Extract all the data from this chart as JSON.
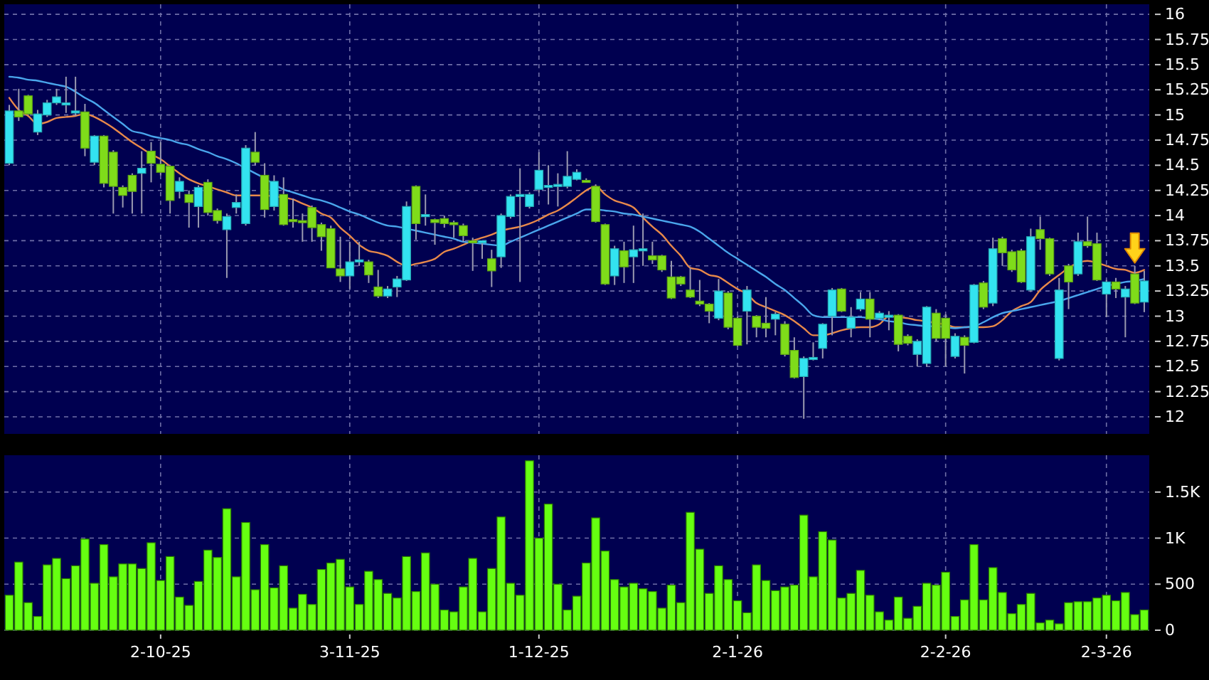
{
  "chart_data": [
    {
      "type": "candlestick",
      "categories": [
        null,
        null,
        null,
        null,
        null,
        null,
        null,
        null,
        null,
        null,
        null,
        null,
        null,
        null,
        null,
        null,
        null,
        null,
        null,
        null,
        null,
        null,
        null,
        null,
        null,
        null,
        null,
        null,
        null,
        null,
        null,
        null,
        null,
        null,
        null,
        null,
        null,
        null,
        null,
        null,
        null,
        null,
        null,
        null,
        null,
        null,
        null,
        null,
        null,
        null,
        null,
        null,
        null,
        null,
        null,
        null,
        null,
        null,
        null,
        null,
        null,
        null,
        null,
        null,
        null,
        null,
        null,
        null,
        null,
        null,
        null,
        null,
        null,
        null,
        null,
        null,
        null,
        null,
        null,
        null,
        null,
        null,
        null,
        null,
        null,
        null,
        null,
        null,
        null,
        null,
        null,
        null,
        null,
        null,
        null,
        null,
        null,
        null,
        null,
        null,
        null,
        null,
        null,
        null,
        null,
        null,
        null,
        null,
        null,
        null,
        null,
        null,
        null,
        null,
        null,
        null,
        null,
        null,
        null,
        null,
        null
      ],
      "ohlc": [
        [
          14.52,
          15.1,
          14.5,
          15.04
        ],
        [
          15.04,
          15.26,
          14.94,
          14.98
        ],
        [
          15.19,
          15.2,
          15.0,
          15.01
        ],
        [
          14.83,
          15.05,
          14.8,
          15.01
        ],
        [
          15.0,
          15.15,
          14.98,
          15.12
        ],
        [
          15.12,
          15.26,
          15.1,
          15.18
        ],
        [
          15.11,
          15.38,
          15.02,
          15.12
        ],
        [
          15.03,
          15.38,
          14.99,
          15.04
        ],
        [
          15.03,
          15.11,
          14.59,
          14.67
        ],
        [
          14.53,
          14.8,
          14.5,
          14.79
        ],
        [
          14.79,
          14.8,
          14.28,
          14.32
        ],
        [
          14.63,
          14.65,
          14.02,
          14.29
        ],
        [
          14.28,
          14.3,
          14.08,
          14.2
        ],
        [
          14.4,
          14.42,
          14.02,
          14.24
        ],
        [
          14.42,
          14.64,
          14.02,
          14.47
        ],
        [
          14.64,
          14.73,
          14.33,
          14.52
        ],
        [
          14.51,
          14.73,
          14.4,
          14.43
        ],
        [
          14.49,
          14.5,
          14.02,
          14.15
        ],
        [
          14.24,
          14.38,
          14.17,
          14.34
        ],
        [
          14.21,
          14.25,
          13.88,
          14.13
        ],
        [
          14.09,
          14.3,
          13.88,
          14.28
        ],
        [
          14.33,
          14.36,
          14.0,
          14.03
        ],
        [
          14.05,
          14.07,
          13.92,
          13.95
        ],
        [
          13.86,
          14.02,
          13.38,
          13.99
        ],
        [
          14.08,
          14.21,
          14.02,
          14.13
        ],
        [
          13.92,
          14.7,
          13.9,
          14.67
        ],
        [
          14.63,
          14.83,
          14.5,
          14.53
        ],
        [
          14.4,
          14.52,
          13.98,
          14.06
        ],
        [
          14.09,
          14.4,
          14.05,
          14.34
        ],
        [
          14.21,
          14.38,
          13.9,
          13.91
        ],
        [
          13.96,
          14.17,
          13.88,
          13.94
        ],
        [
          13.95,
          14.02,
          13.74,
          13.94
        ],
        [
          14.08,
          14.1,
          13.74,
          13.88
        ],
        [
          13.91,
          13.93,
          13.65,
          13.79
        ],
        [
          13.87,
          13.9,
          13.48,
          13.48
        ],
        [
          13.47,
          13.79,
          13.34,
          13.4
        ],
        [
          13.4,
          13.74,
          13.27,
          13.54
        ],
        [
          13.55,
          13.74,
          13.5,
          13.56
        ],
        [
          13.54,
          13.56,
          13.33,
          13.41
        ],
        [
          13.29,
          13.46,
          13.18,
          13.2
        ],
        [
          13.2,
          13.3,
          13.18,
          13.27
        ],
        [
          13.29,
          13.4,
          13.19,
          13.37
        ],
        [
          13.36,
          14.14,
          13.35,
          14.09
        ],
        [
          14.29,
          14.3,
          13.76,
          13.92
        ],
        [
          14.0,
          14.21,
          13.9,
          14.01
        ],
        [
          13.96,
          13.97,
          13.71,
          13.93
        ],
        [
          13.97,
          14.0,
          13.88,
          13.92
        ],
        [
          13.93,
          13.95,
          13.78,
          13.92
        ],
        [
          13.9,
          13.92,
          13.74,
          13.8
        ],
        [
          13.75,
          13.78,
          13.45,
          13.74
        ],
        [
          13.74,
          13.75,
          13.57,
          13.75
        ],
        [
          13.57,
          13.66,
          13.29,
          13.45
        ],
        [
          13.59,
          14.02,
          13.48,
          14.0
        ],
        [
          13.99,
          14.21,
          13.97,
          14.19
        ],
        [
          14.2,
          14.47,
          13.34,
          14.21
        ],
        [
          14.09,
          14.23,
          14.07,
          14.21
        ],
        [
          14.26,
          14.63,
          14.23,
          14.45
        ],
        [
          14.29,
          14.5,
          14.11,
          14.3
        ],
        [
          14.29,
          14.42,
          14.09,
          14.31
        ],
        [
          14.29,
          14.64,
          14.27,
          14.39
        ],
        [
          14.36,
          14.46,
          14.35,
          14.43
        ],
        [
          14.35,
          14.37,
          14.33,
          14.34
        ],
        [
          14.29,
          14.31,
          13.93,
          13.94
        ],
        [
          13.91,
          13.92,
          13.31,
          13.32
        ],
        [
          13.4,
          13.7,
          13.31,
          13.67
        ],
        [
          13.65,
          13.74,
          13.33,
          13.49
        ],
        [
          13.59,
          13.9,
          13.33,
          13.66
        ],
        [
          13.66,
          14.02,
          13.5,
          13.67
        ],
        [
          13.6,
          13.74,
          13.52,
          13.56
        ],
        [
          13.6,
          13.61,
          13.44,
          13.46
        ],
        [
          13.39,
          13.55,
          13.17,
          13.18
        ],
        [
          13.39,
          13.4,
          13.3,
          13.32
        ],
        [
          13.26,
          13.48,
          13.18,
          13.19
        ],
        [
          13.15,
          13.36,
          13.1,
          13.12
        ],
        [
          13.12,
          13.13,
          12.93,
          13.05
        ],
        [
          12.98,
          13.37,
          12.96,
          13.25
        ],
        [
          13.23,
          13.25,
          12.87,
          12.89
        ],
        [
          12.98,
          13.0,
          12.7,
          12.71
        ],
        [
          13.05,
          13.3,
          12.72,
          13.26
        ],
        [
          13.0,
          13.01,
          12.79,
          12.89
        ],
        [
          12.93,
          13.19,
          12.79,
          12.88
        ],
        [
          12.97,
          13.04,
          12.81,
          13.02
        ],
        [
          12.92,
          12.95,
          12.6,
          12.62
        ],
        [
          12.66,
          12.79,
          12.38,
          12.39
        ],
        [
          12.4,
          12.6,
          11.98,
          12.58
        ],
        [
          12.58,
          12.74,
          12.56,
          12.59
        ],
        [
          12.68,
          12.93,
          12.58,
          12.92
        ],
        [
          13.0,
          13.28,
          12.81,
          13.26
        ],
        [
          13.27,
          13.28,
          13.04,
          13.05
        ],
        [
          12.88,
          13.09,
          12.79,
          12.99
        ],
        [
          13.07,
          13.24,
          13.05,
          13.17
        ],
        [
          13.17,
          13.24,
          12.79,
          12.97
        ],
        [
          12.98,
          13.05,
          12.96,
          13.03
        ],
        [
          13.0,
          13.05,
          12.86,
          13.01
        ],
        [
          13.01,
          13.02,
          12.65,
          12.72
        ],
        [
          12.8,
          12.82,
          12.71,
          12.73
        ],
        [
          12.62,
          12.77,
          12.5,
          12.75
        ],
        [
          12.53,
          13.1,
          12.5,
          13.09
        ],
        [
          13.03,
          13.07,
          12.75,
          12.78
        ],
        [
          12.98,
          13.02,
          12.5,
          12.78
        ],
        [
          12.6,
          12.83,
          12.58,
          12.8
        ],
        [
          12.79,
          12.81,
          12.43,
          12.71
        ],
        [
          12.74,
          13.32,
          12.73,
          13.31
        ],
        [
          13.33,
          13.35,
          13.07,
          13.09
        ],
        [
          13.13,
          13.78,
          13.1,
          13.67
        ],
        [
          13.77,
          13.79,
          13.5,
          13.63
        ],
        [
          13.64,
          13.66,
          13.44,
          13.46
        ],
        [
          13.65,
          13.67,
          13.33,
          13.34
        ],
        [
          13.26,
          13.87,
          13.24,
          13.79
        ],
        [
          13.86,
          13.99,
          13.66,
          13.77
        ],
        [
          13.77,
          13.78,
          13.4,
          13.42
        ],
        [
          12.58,
          13.38,
          12.56,
          13.26
        ],
        [
          13.5,
          13.52,
          13.07,
          13.34
        ],
        [
          13.42,
          13.83,
          13.4,
          13.74
        ],
        [
          13.74,
          13.99,
          13.68,
          13.7
        ],
        [
          13.72,
          13.83,
          13.35,
          13.36
        ],
        [
          13.22,
          13.36,
          12.99,
          13.34
        ],
        [
          13.34,
          13.38,
          13.18,
          13.27
        ],
        [
          13.19,
          13.3,
          12.79,
          13.27
        ],
        [
          13.42,
          13.5,
          13.12,
          13.13
        ],
        [
          13.14,
          13.45,
          13.04,
          13.35
        ]
      ],
      "colors": [
        "#33e3f0",
        "#7fdc1a",
        "#7fdc1a",
        "#33e3f0",
        "#33e3f0",
        "#33e3f0",
        "#33e3f0",
        "#33e3f0",
        "#7fdc1a",
        "#33e3f0",
        "#7fdc1a",
        "#7fdc1a",
        "#7fdc1a",
        "#7fdc1a",
        "#33e3f0",
        "#7fdc1a",
        "#7fdc1a",
        "#7fdc1a",
        "#33e3f0",
        "#7fdc1a",
        "#33e3f0",
        "#7fdc1a",
        "#7fdc1a",
        "#33e3f0",
        "#33e3f0",
        "#33e3f0",
        "#7fdc1a",
        "#7fdc1a",
        "#33e3f0",
        "#7fdc1a",
        "#7fdc1a",
        "#7fdc1a",
        "#7fdc1a",
        "#7fdc1a",
        "#7fdc1a",
        "#7fdc1a",
        "#33e3f0",
        "#33e3f0",
        "#7fdc1a",
        "#7fdc1a",
        "#33e3f0",
        "#33e3f0",
        "#33e3f0",
        "#7fdc1a",
        "#33e3f0",
        "#7fdc1a",
        "#7fdc1a",
        "#7fdc1a",
        "#7fdc1a",
        "#7fdc1a",
        "#33e3f0",
        "#7fdc1a",
        "#33e3f0",
        "#33e3f0",
        "#33e3f0",
        "#33e3f0",
        "#33e3f0",
        "#33e3f0",
        "#33e3f0",
        "#33e3f0",
        "#33e3f0",
        "#7fdc1a",
        "#7fdc1a",
        "#7fdc1a",
        "#33e3f0",
        "#7fdc1a",
        "#33e3f0",
        "#33e3f0",
        "#7fdc1a",
        "#7fdc1a",
        "#7fdc1a",
        "#7fdc1a",
        "#7fdc1a",
        "#7fdc1a",
        "#7fdc1a",
        "#33e3f0",
        "#7fdc1a",
        "#7fdc1a",
        "#33e3f0",
        "#7fdc1a",
        "#7fdc1a",
        "#33e3f0",
        "#7fdc1a",
        "#7fdc1a",
        "#33e3f0",
        "#33e3f0",
        "#33e3f0",
        "#33e3f0",
        "#7fdc1a",
        "#33e3f0",
        "#33e3f0",
        "#7fdc1a",
        "#33e3f0",
        "#33e3f0",
        "#7fdc1a",
        "#7fdc1a",
        "#33e3f0",
        "#33e3f0",
        "#7fdc1a",
        "#7fdc1a",
        "#33e3f0",
        "#7fdc1a",
        "#33e3f0",
        "#7fdc1a",
        "#33e3f0",
        "#7fdc1a",
        "#7fdc1a",
        "#7fdc1a",
        "#33e3f0",
        "#7fdc1a",
        "#7fdc1a",
        "#33e3f0",
        "#7fdc1a",
        "#33e3f0",
        "#7fdc1a",
        "#7fdc1a",
        "#33e3f0",
        "#7fdc1a",
        "#33e3f0",
        "#7fdc1a",
        "#33e3f0"
      ],
      "series": [
        {
          "type": "line",
          "color": "#e8894a",
          "values": [
            15.17,
            15.05,
            14.99,
            14.91,
            14.93,
            14.97,
            14.98,
            14.99,
            15.01,
            14.98,
            14.93,
            14.87,
            14.8,
            14.73,
            14.67,
            14.61,
            14.56,
            14.49,
            14.42,
            14.36,
            14.32,
            14.29,
            14.26,
            14.23,
            14.2,
            14.2,
            14.2,
            14.2,
            14.19,
            14.18,
            14.16,
            14.12,
            14.08,
            14.02,
            13.98,
            13.88,
            13.8,
            13.71,
            13.65,
            13.63,
            13.6,
            13.54,
            13.5,
            13.52,
            13.54,
            13.57,
            13.64,
            13.67,
            13.71,
            13.75,
            13.78,
            13.81,
            13.85,
            13.87,
            13.89,
            13.92,
            13.96,
            14.01,
            14.05,
            14.11,
            14.18,
            14.25,
            14.29,
            14.21,
            14.15,
            14.12,
            14.08,
            13.98,
            13.89,
            13.81,
            13.7,
            13.6,
            13.48,
            13.46,
            13.41,
            13.39,
            13.33,
            13.27,
            13.22,
            13.13,
            13.09,
            13.05,
            13.01,
            12.95,
            12.88,
            12.81,
            12.81,
            12.83,
            12.86,
            12.88,
            12.89,
            12.89,
            12.92,
            13.0,
            12.99,
            12.98,
            12.96,
            12.95,
            12.93,
            12.92,
            12.89,
            12.89,
            12.89,
            12.89,
            12.9,
            12.96,
            13.05,
            13.1,
            13.14,
            13.26,
            13.34,
            13.41,
            13.48,
            13.53,
            13.55,
            13.53,
            13.5,
            13.47,
            13.46,
            13.43,
            13.46
          ]
        },
        {
          "type": "line",
          "color": "#4aa6ec",
          "values": [
            15.38,
            15.37,
            15.35,
            15.34,
            15.32,
            15.3,
            15.28,
            15.23,
            15.17,
            15.12,
            15.05,
            14.98,
            14.91,
            14.84,
            14.82,
            14.79,
            14.77,
            14.75,
            14.72,
            14.7,
            14.66,
            14.63,
            14.59,
            14.56,
            14.52,
            14.47,
            14.42,
            14.37,
            14.31,
            14.26,
            14.23,
            14.2,
            14.17,
            14.15,
            14.12,
            14.08,
            14.04,
            14.01,
            13.97,
            13.93,
            13.9,
            13.89,
            13.87,
            13.85,
            13.83,
            13.81,
            13.79,
            13.77,
            13.74,
            13.73,
            13.72,
            13.71,
            13.7,
            13.74,
            13.78,
            13.82,
            13.86,
            13.9,
            13.94,
            13.98,
            14.02,
            14.06,
            14.06,
            14.05,
            14.04,
            14.02,
            14.01,
            13.99,
            13.97,
            13.95,
            13.93,
            13.91,
            13.89,
            13.84,
            13.77,
            13.7,
            13.63,
            13.57,
            13.51,
            13.45,
            13.39,
            13.32,
            13.26,
            13.18,
            13.1,
            13.01,
            12.99,
            12.99,
            12.99,
            12.99,
            12.99,
            12.98,
            12.97,
            12.95,
            12.94,
            12.92,
            12.91,
            12.9,
            12.9,
            12.89,
            12.88,
            12.89,
            12.9,
            12.94,
            12.99,
            13.03,
            13.05,
            13.07,
            13.09,
            13.11,
            13.13,
            13.15,
            13.18,
            13.21,
            13.24,
            13.27,
            13.3,
            13.32,
            13.34,
            13.35,
            13.37
          ]
        }
      ],
      "ylim": [
        11.83,
        16.1
      ],
      "yticks": [
        12,
        12.25,
        12.5,
        12.75,
        13,
        13.25,
        13.5,
        13.75,
        14,
        14.25,
        14.5,
        14.75,
        15,
        15.25,
        15.5,
        15.75,
        16
      ],
      "grid": true,
      "tick_labels": "y"
    },
    {
      "type": "bar",
      "categories": [
        null,
        null,
        null,
        null,
        null,
        null,
        null,
        null,
        null,
        null,
        null,
        null,
        null,
        null,
        null,
        null,
        "2-10-25",
        null,
        null,
        null,
        null,
        null,
        null,
        null,
        null,
        null,
        null,
        null,
        null,
        null,
        null,
        null,
        null,
        null,
        null,
        null,
        "3-11-25",
        null,
        null,
        null,
        null,
        null,
        null,
        null,
        null,
        null,
        null,
        null,
        null,
        null,
        null,
        null,
        null,
        null,
        null,
        null,
        "1-12-25",
        null,
        null,
        null,
        null,
        null,
        null,
        null,
        null,
        null,
        null,
        null,
        null,
        null,
        null,
        null,
        null,
        null,
        null,
        null,
        null,
        "2-1-26",
        null,
        null,
        null,
        null,
        null,
        null,
        null,
        null,
        null,
        null,
        null,
        null,
        null,
        null,
        null,
        null,
        null,
        null,
        null,
        null,
        null,
        "2-2-26",
        null,
        null,
        null,
        null,
        null,
        null,
        null,
        null,
        null,
        null,
        null,
        null,
        null,
        null,
        null,
        null,
        "2-3-26",
        null,
        null,
        null,
        null
      ],
      "values": [
        380,
        740,
        300,
        150,
        710,
        780,
        560,
        700,
        990,
        510,
        930,
        580,
        720,
        720,
        670,
        950,
        540,
        800,
        360,
        270,
        530,
        870,
        790,
        1320,
        580,
        1170,
        440,
        930,
        460,
        700,
        240,
        390,
        280,
        660,
        730,
        770,
        470,
        280,
        640,
        550,
        400,
        350,
        800,
        420,
        840,
        500,
        220,
        200,
        470,
        780,
        200,
        670,
        1230,
        510,
        380,
        1840,
        1000,
        1370,
        500,
        220,
        370,
        730,
        1220,
        860,
        550,
        470,
        510,
        450,
        420,
        240,
        490,
        300,
        1280,
        880,
        400,
        700,
        550,
        320,
        190,
        710,
        540,
        430,
        470,
        490,
        1250,
        580,
        1070,
        980,
        350,
        400,
        650,
        380,
        200,
        110,
        360,
        130,
        260,
        510,
        490,
        630,
        150,
        330,
        930,
        330,
        680,
        410,
        180,
        280,
        400,
        80,
        110,
        70,
        300,
        310,
        310,
        350,
        380,
        320,
        410,
        170,
        220
      ],
      "color": "#66ff11",
      "ylim": [
        0,
        1900
      ],
      "yticks": [
        0,
        500,
        {
          "value": 1000,
          "label": "1K"
        },
        {
          "value": 1500,
          "label": "1.5K"
        }
      ],
      "grid": true
    }
  ]
}
